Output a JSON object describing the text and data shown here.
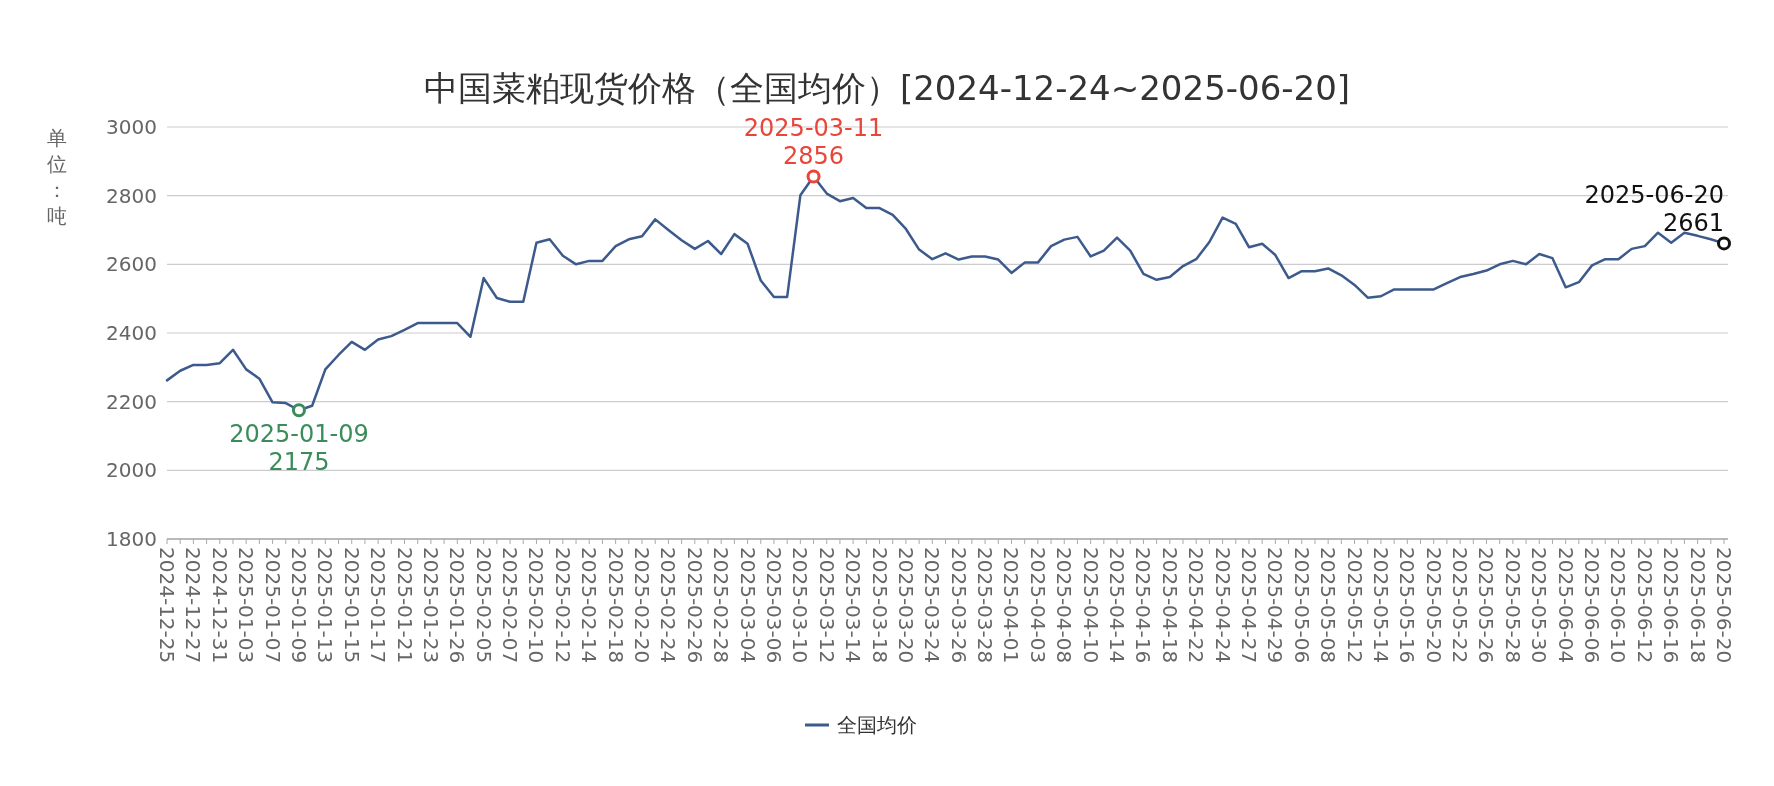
{
  "chart_data": {
    "type": "line",
    "title": "中国菜粕现货价格（全国均价）[2024-12-24~2025-06-20]",
    "ylabel": "单位：吨",
    "categories": [
      "2024-12-25",
      null,
      "2024-12-27",
      null,
      "2024-12-31",
      null,
      "2025-01-03",
      null,
      "2025-01-07",
      null,
      "2025-01-09",
      null,
      "2025-01-13",
      null,
      "2025-01-15",
      null,
      "2025-01-17",
      null,
      "2025-01-21",
      null,
      "2025-01-23",
      null,
      "2025-01-26",
      null,
      "2025-02-05",
      null,
      "2025-02-07",
      null,
      "2025-02-10",
      null,
      "2025-02-12",
      null,
      "2025-02-14",
      null,
      "2025-02-18",
      null,
      "2025-02-20",
      null,
      "2025-02-24",
      null,
      "2025-02-26",
      null,
      "2025-02-28",
      null,
      "2025-03-04",
      null,
      "2025-03-06",
      null,
      "2025-03-10",
      null,
      "2025-03-12",
      null,
      "2025-03-14",
      null,
      "2025-03-18",
      null,
      "2025-03-20",
      null,
      "2025-03-24",
      null,
      "2025-03-26",
      null,
      "2025-03-28",
      null,
      "2025-04-01",
      null,
      "2025-04-03",
      null,
      "2025-04-08",
      null,
      "2025-04-10",
      null,
      "2025-04-14",
      null,
      "2025-04-16",
      null,
      "2025-04-18",
      null,
      "2025-04-22",
      null,
      "2025-04-24",
      null,
      "2025-04-27",
      null,
      "2025-04-29",
      null,
      "2025-05-06",
      null,
      "2025-05-08",
      null,
      "2025-05-12",
      null,
      "2025-05-14",
      null,
      "2025-05-16",
      null,
      "2025-05-20",
      null,
      "2025-05-22",
      null,
      "2025-05-26",
      null,
      "2025-05-28",
      null,
      "2025-05-30",
      null,
      "2025-06-04",
      null,
      "2025-06-06",
      null,
      "2025-06-10",
      null,
      "2025-06-12",
      null,
      "2025-06-16",
      null,
      "2025-06-18",
      null,
      "2025-06-20"
    ],
    "series": [
      {
        "name": "全国均价",
        "color": "#3d5a8c",
        "values": [
          2262,
          2290,
          2307,
          2307,
          2312,
          2351,
          2294,
          2267,
          2198,
          2196,
          2175,
          2188,
          2294,
          2336,
          2374,
          2351,
          2381,
          2391,
          2409,
          2429,
          2429,
          2429,
          2429,
          2389,
          2560,
          2502,
          2491,
          2491,
          2663,
          2673,
          2625,
          2600,
          2610,
          2610,
          2653,
          2673,
          2682,
          2731,
          2700,
          2670,
          2645,
          2668,
          2630,
          2688,
          2660,
          2553,
          2505,
          2505,
          2801,
          2856,
          2806,
          2784,
          2793,
          2764,
          2764,
          2744,
          2703,
          2643,
          2615,
          2632,
          2614,
          2623,
          2623,
          2614,
          2575,
          2605,
          2605,
          2653,
          2672,
          2680,
          2623,
          2640,
          2678,
          2640,
          2572,
          2555,
          2563,
          2595,
          2615,
          2665,
          2736,
          2718,
          2650,
          2660,
          2627,
          2560,
          2580,
          2580,
          2588,
          2568,
          2540,
          2503,
          2507,
          2527,
          2527,
          2527,
          2527,
          2545,
          2563,
          2572,
          2582,
          2600,
          2610,
          2600,
          2630,
          2618,
          2533,
          2548,
          2597,
          2615,
          2615,
          2645,
          2653,
          2692,
          2663,
          2692,
          2683,
          2673,
          2661
        ]
      }
    ],
    "ylim": [
      1800,
      3000
    ],
    "yticks": [
      1800,
      2000,
      2200,
      2400,
      2600,
      2800,
      3000
    ],
    "grid": "y",
    "legend": "bottom",
    "annotations": [
      {
        "text": "2025-01-09\n2175",
        "x": "2025-01-09",
        "y": 2175
      },
      {
        "text": "2025-03-11\n2856",
        "y": 2856
      },
      {
        "text": "2025-06-20\n2661",
        "x": "2025-06-20",
        "y": 2661
      }
    ]
  }
}
